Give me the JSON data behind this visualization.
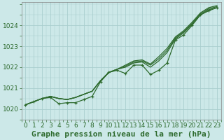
{
  "title": "Graphe pression niveau de la mer (hPa)",
  "xlabel_hours": [
    0,
    1,
    2,
    3,
    4,
    5,
    6,
    7,
    8,
    9,
    10,
    11,
    12,
    13,
    14,
    15,
    16,
    17,
    18,
    19,
    20,
    21,
    22,
    23
  ],
  "line_main": [
    1020.2,
    1020.35,
    1020.5,
    1020.55,
    1020.25,
    1020.3,
    1020.3,
    1020.45,
    1020.6,
    1021.3,
    1021.75,
    1021.85,
    1021.7,
    1022.1,
    1022.1,
    1021.65,
    1021.85,
    1022.2,
    1023.3,
    1023.55,
    1024.0,
    1024.5,
    1024.7,
    1024.85
  ],
  "line_smooth1": [
    1020.2,
    1020.35,
    1020.5,
    1020.6,
    1020.5,
    1020.45,
    1020.55,
    1020.7,
    1020.85,
    1021.35,
    1021.75,
    1021.9,
    1022.0,
    1022.2,
    1022.25,
    1022.0,
    1022.3,
    1022.7,
    1023.35,
    1023.65,
    1024.05,
    1024.5,
    1024.75,
    1024.85
  ],
  "line_smooth2": [
    1020.2,
    1020.35,
    1020.5,
    1020.6,
    1020.5,
    1020.45,
    1020.55,
    1020.7,
    1020.85,
    1021.35,
    1021.75,
    1021.9,
    1022.05,
    1022.25,
    1022.3,
    1022.1,
    1022.4,
    1022.8,
    1023.4,
    1023.7,
    1024.1,
    1024.55,
    1024.8,
    1024.9
  ],
  "line_smooth3": [
    1020.2,
    1020.35,
    1020.5,
    1020.6,
    1020.5,
    1020.45,
    1020.55,
    1020.7,
    1020.85,
    1021.35,
    1021.75,
    1021.9,
    1022.1,
    1022.3,
    1022.35,
    1022.15,
    1022.5,
    1022.9,
    1023.45,
    1023.75,
    1024.15,
    1024.6,
    1024.85,
    1024.95
  ],
  "line_color": "#2d6a2d",
  "bg_color": "#cce8e8",
  "grid_color": "#aacece",
  "ylim": [
    1019.55,
    1025.1
  ],
  "yticks": [
    1020,
    1021,
    1022,
    1023,
    1024
  ],
  "title_fontsize": 8,
  "tick_fontsize": 6.5
}
